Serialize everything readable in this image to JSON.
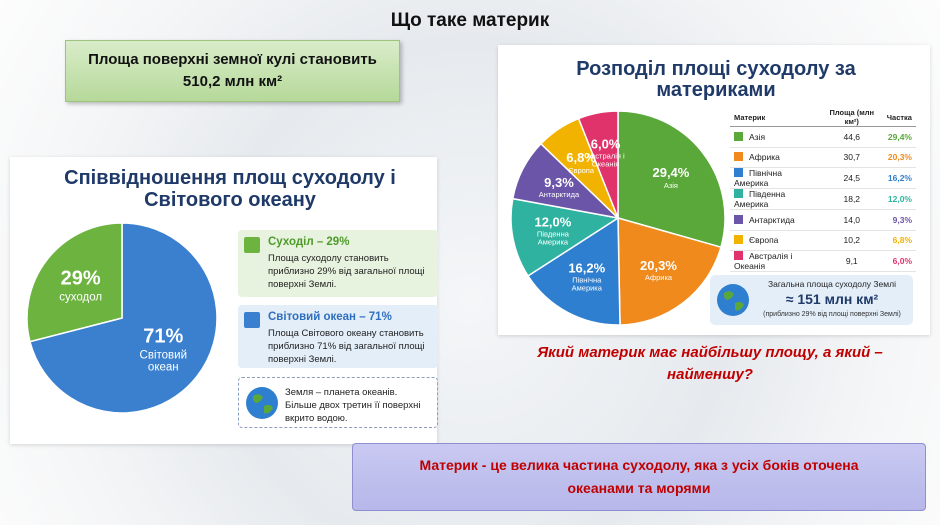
{
  "title": "Що таке материк",
  "info_box": "Площа поверхні земної кулі становить 510,2 млн км²",
  "left_panel": {
    "title": "Співвідношення площ суходолу і Світового океану",
    "legend": [
      {
        "title": "Суходіл – 29%",
        "text": "Площа суходолу становить приблизно 29% від загальної площі поверхні Землі."
      },
      {
        "title": "Світовий океан – 71%",
        "text": "Площа Світового океану становить приблизно 71% від загальної площі поверхні Землі."
      }
    ],
    "note": "Земля – планета океанів. Більше двох третин її поверхні вкрито водою."
  },
  "right_panel": {
    "title": "Розподіл площі суходолу за материками",
    "table": {
      "header": [
        "Материк",
        "Площа (млн км²)",
        "Частка"
      ],
      "rows": [
        [
          "Азія",
          "44,6",
          "29,4%"
        ],
        [
          "Африка",
          "30,7",
          "20,3%"
        ],
        [
          "Північна Америка",
          "24,5",
          "16,2%"
        ],
        [
          "Південна Америка",
          "18,2",
          "12,0%"
        ],
        [
          "Антарктида",
          "14,0",
          "9,3%"
        ],
        [
          "Європа",
          "10,2",
          "6,8%"
        ],
        [
          "Австралія і Океанія",
          "9,1",
          "6,0%"
        ]
      ]
    },
    "summary": {
      "title": "Загальна площа суходолу Землі",
      "value": "≈ 151 млн км²",
      "note": "(приблизно 29% від площі поверхні Землі)"
    }
  },
  "question": "Який материк має найбільшу площу, а який – найменшу?",
  "definition": "Материк - це велика частина суходолу, яка з усіх боків оточена океанами та морями",
  "chart_data": [
    {
      "type": "pie",
      "categories": [
        "Світовий океан",
        "суходол"
      ],
      "values": [
        71,
        29
      ],
      "value_labels": [
        "71%",
        "29%"
      ],
      "colors": [
        "#3a80cf",
        "#6cb33f"
      ]
    },
    {
      "type": "pie",
      "categories": [
        "Азія",
        "Африка",
        "Північна Америка",
        "Південна Америка",
        "Антарктида",
        "Європа",
        "Австралія і Океанія"
      ],
      "values": [
        29.4,
        20.3,
        16.2,
        12.0,
        9.3,
        6.8,
        6.0
      ],
      "value_labels": [
        "29,4%",
        "20,3%",
        "16,2%",
        "12,0%",
        "9,3%",
        "6,8%",
        "6,0%"
      ],
      "colors": [
        "#5aa83a",
        "#f08a1c",
        "#2f7fd0",
        "#2fb3a0",
        "#6b55a8",
        "#f2b300",
        "#e0336b"
      ]
    }
  ]
}
